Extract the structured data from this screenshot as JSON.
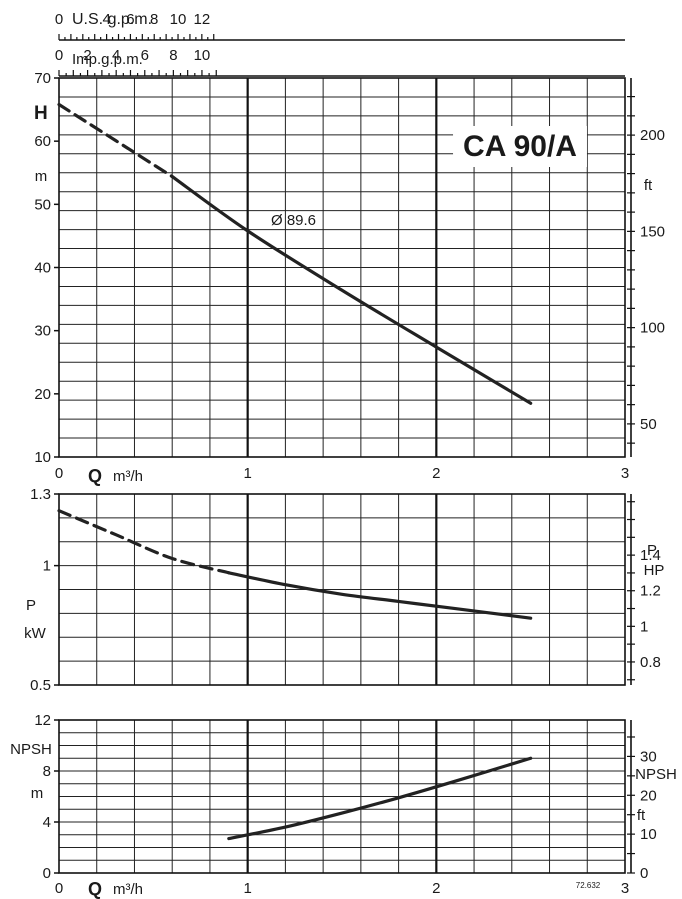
{
  "chart_data": [
    {
      "type": "line",
      "title": "CA 90/A",
      "curve_label": "Ø 89.6",
      "xlabel_symbol": "Q",
      "xlabel_unit": "m³/h",
      "ylabel_symbol": "H",
      "ylabel_unit": "m",
      "right_unit": "ft",
      "xlim": [
        0,
        3
      ],
      "ylim": [
        10,
        70
      ],
      "x_ticks": [
        "0",
        "1",
        "2",
        "3"
      ],
      "y_ticks": [
        "10",
        "20",
        "30",
        "40",
        "50",
        "60",
        "70"
      ],
      "right_ticks": [
        "50",
        "100",
        "150",
        "200"
      ],
      "top_axes": [
        {
          "label": "U.S. g.p.m.",
          "ticks": [
            "0",
            "4",
            "6",
            "8",
            "10",
            "12"
          ]
        },
        {
          "label": "Imp.g.p.m.",
          "ticks": [
            "0",
            "2",
            "4",
            "6",
            "8",
            "10"
          ]
        }
      ],
      "grid": true,
      "series": [
        {
          "style": "dashed",
          "x": [
            0.0,
            0.6
          ],
          "y": [
            65.8,
            54.4
          ]
        },
        {
          "style": "solid",
          "x": [
            0.6,
            1.0,
            1.5,
            2.0,
            2.5
          ],
          "y": [
            54.4,
            45.8,
            36.4,
            27.4,
            18.5
          ]
        }
      ]
    },
    {
      "type": "line",
      "ylabel_symbol": "P",
      "ylabel_unit": "kW",
      "right_symbol": "P",
      "right_unit": "HP",
      "xlim": [
        0,
        3
      ],
      "ylim": [
        0.5,
        1.3
      ],
      "y_ticks": [
        "0.5",
        "1",
        "1.3"
      ],
      "right_ticks": [
        "0.8",
        "1",
        "1.2",
        "1.4"
      ],
      "grid": true,
      "series": [
        {
          "style": "dashed",
          "x": [
            0.0,
            0.3,
            0.6,
            0.9
          ],
          "y": [
            1.23,
            1.13,
            1.03,
            0.97
          ]
        },
        {
          "style": "solid",
          "x": [
            0.9,
            1.2,
            1.5,
            1.8,
            2.1,
            2.5
          ],
          "y": [
            0.97,
            0.92,
            0.88,
            0.85,
            0.82,
            0.78
          ]
        }
      ]
    },
    {
      "type": "line",
      "xlabel_symbol": "Q",
      "xlabel_unit": "m³/h",
      "ylabel": "NPSH",
      "ylabel_unit": "m",
      "right_label": "NPSH",
      "right_unit": "ft",
      "xlim": [
        0,
        3
      ],
      "ylim": [
        0,
        12
      ],
      "x_ticks": [
        "0",
        "1",
        "2",
        "3"
      ],
      "y_ticks": [
        "0",
        "4",
        "8",
        "12"
      ],
      "right_ticks": [
        "0",
        "10",
        "20",
        "30"
      ],
      "grid": true,
      "series": [
        {
          "style": "solid",
          "x": [
            0.9,
            1.2,
            1.5,
            1.8,
            2.1,
            2.5
          ],
          "y": [
            2.7,
            3.6,
            4.7,
            5.9,
            7.2,
            9.0
          ]
        }
      ]
    }
  ],
  "figure_code": "72.632"
}
